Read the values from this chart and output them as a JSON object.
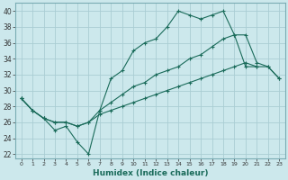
{
  "xlabel": "Humidex (Indice chaleur)",
  "bg_color": "#cce8ec",
  "grid_color": "#aacdd4",
  "line_color": "#1a6b5a",
  "xlim": [
    -0.5,
    23.5
  ],
  "ylim": [
    21.5,
    41
  ],
  "xticks": [
    0,
    1,
    2,
    3,
    4,
    5,
    6,
    7,
    8,
    9,
    10,
    11,
    12,
    13,
    14,
    15,
    16,
    17,
    18,
    19,
    20,
    21,
    22,
    23
  ],
  "yticks": [
    22,
    24,
    26,
    28,
    30,
    32,
    34,
    36,
    38,
    40
  ],
  "series1_x": [
    0,
    1,
    2,
    3,
    4,
    5,
    6,
    7,
    8,
    9,
    10,
    11,
    12,
    13,
    14,
    15,
    16,
    17,
    18,
    19,
    20,
    21
  ],
  "series1_y": [
    29,
    27.5,
    26.5,
    25,
    25.5,
    23.5,
    22,
    27.5,
    31.5,
    32.5,
    35,
    36,
    36.5,
    38,
    40,
    39.5,
    39,
    39.5,
    40,
    37,
    33,
    33
  ],
  "series2_x": [
    0,
    1,
    2,
    3,
    4,
    5,
    6,
    7,
    8,
    9,
    10,
    11,
    12,
    13,
    14,
    15,
    16,
    17,
    18,
    19,
    20,
    21,
    22,
    23
  ],
  "series2_y": [
    29,
    27.5,
    26.5,
    26,
    26,
    25.5,
    26,
    27,
    27.5,
    28,
    28.5,
    29,
    29.5,
    30,
    30.5,
    31,
    31.5,
    32,
    32.5,
    33,
    33.5,
    33,
    33,
    31.5
  ],
  "series3_x": [
    0,
    1,
    2,
    3,
    4,
    5,
    6,
    7,
    8,
    9,
    10,
    11,
    12,
    13,
    14,
    15,
    16,
    17,
    18,
    19,
    20,
    21,
    22,
    23
  ],
  "series3_y": [
    29,
    27.5,
    26.5,
    26,
    26,
    25.5,
    26,
    27.5,
    28.5,
    29.5,
    30.5,
    31,
    32,
    32.5,
    33,
    34,
    34.5,
    35.5,
    36.5,
    37,
    37,
    33.5,
    33,
    31.5
  ]
}
